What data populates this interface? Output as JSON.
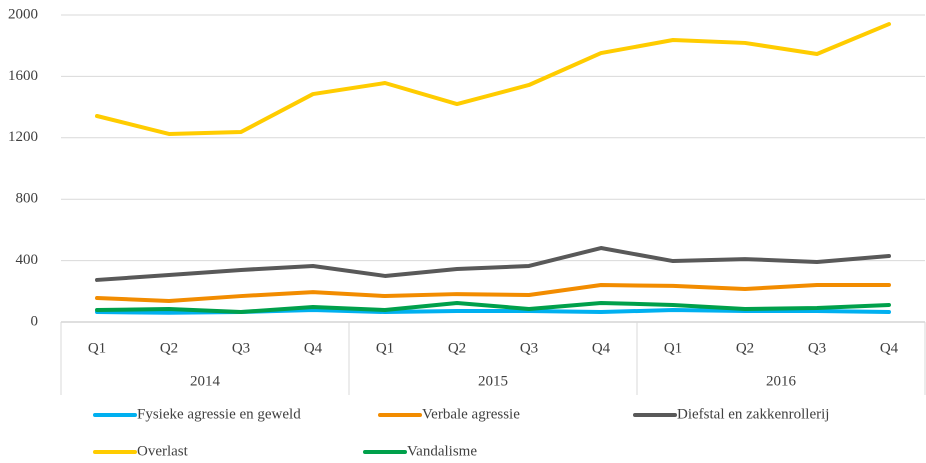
{
  "chart_data": {
    "type": "line",
    "categories": [
      "Q1",
      "Q2",
      "Q3",
      "Q4",
      "Q1",
      "Q2",
      "Q3",
      "Q4",
      "Q1",
      "Q2",
      "Q3",
      "Q4"
    ],
    "groups": [
      "2014",
      "2015",
      "2016"
    ],
    "series": [
      {
        "name": "Fysieke agressie en geweld",
        "color": "#00b0f0",
        "values": [
          65,
          60,
          65,
          78,
          65,
          72,
          72,
          65,
          78,
          72,
          72,
          65
        ]
      },
      {
        "name": "Verbale agressie",
        "color": "#f28c00",
        "values": [
          156,
          137,
          169,
          195,
          169,
          182,
          176,
          241,
          235,
          215,
          241,
          241
        ]
      },
      {
        "name": "Diefstal en zakkenrollerij",
        "color": "#595959",
        "values": [
          274,
          306,
          339,
          365,
          300,
          345,
          365,
          482,
          397,
          410,
          391,
          430
        ]
      },
      {
        "name": "Overlast",
        "color": "#ffcc00",
        "values": [
          1342,
          1225,
          1238,
          1485,
          1557,
          1420,
          1544,
          1752,
          1837,
          1818,
          1746,
          1941
        ]
      },
      {
        "name": "Vandalisme",
        "color": "#00a04b",
        "values": [
          78,
          85,
          65,
          98,
          78,
          124,
          85,
          124,
          111,
          85,
          91,
          111
        ]
      }
    ],
    "ylim": [
      0,
      2000
    ],
    "yticks": [
      0,
      400,
      800,
      1200,
      1600,
      2000
    ],
    "grid": true
  }
}
